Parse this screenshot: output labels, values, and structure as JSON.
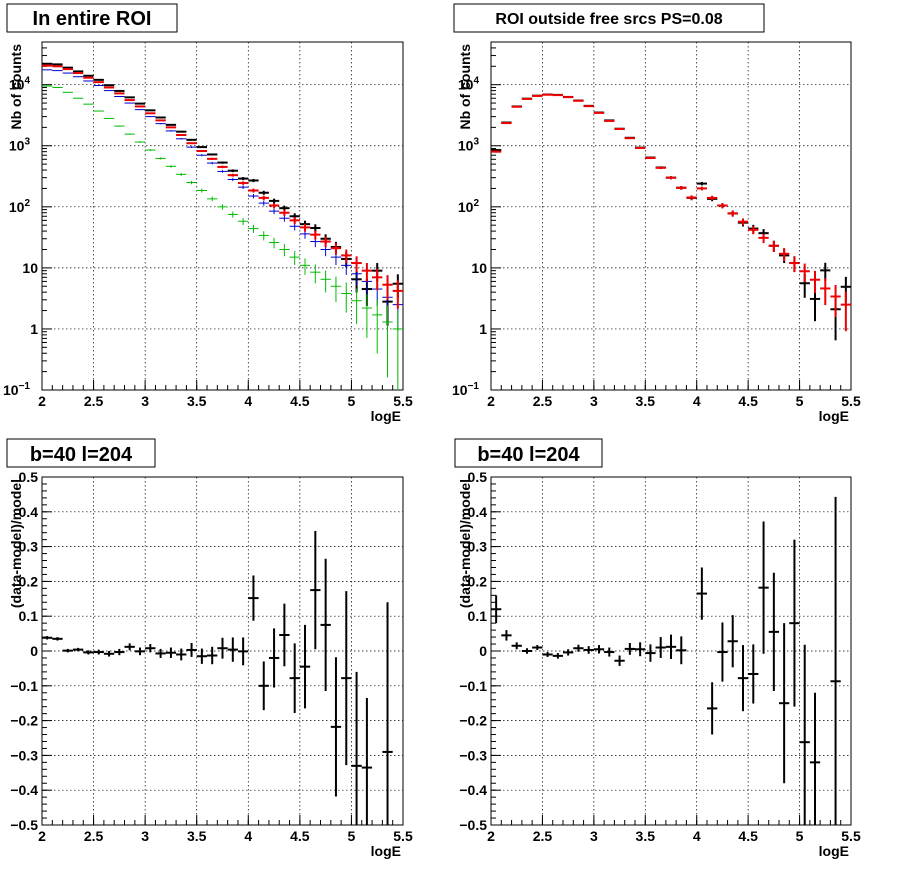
{
  "chart_data": [
    {
      "type": "scatter",
      "title": "In entire ROI",
      "xlabel": "logE",
      "ylabel": "Nb of counts",
      "xlim": [
        2,
        5.5
      ],
      "ylim": [
        0.1,
        50000
      ],
      "yscale": "log",
      "grid": true,
      "x_ticks": [
        "2",
        "2.5",
        "3",
        "3.5",
        "4",
        "4.5",
        "5",
        "5.5"
      ],
      "y_ticks": [
        {
          "v": 0.1,
          "base": "10",
          "exp": "−1"
        },
        {
          "v": 1,
          "label": "1"
        },
        {
          "v": 10,
          "label": "10"
        },
        {
          "v": 100,
          "base": "10",
          "exp": "2"
        },
        {
          "v": 1000,
          "base": "10",
          "exp": "3"
        },
        {
          "v": 10000,
          "base": "10",
          "exp": "4"
        }
      ],
      "series": [
        {
          "color": "#000000",
          "x": [
            2.05,
            2.15,
            2.25,
            2.35,
            2.45,
            2.55,
            2.65,
            2.75,
            2.85,
            2.95,
            3.05,
            3.15,
            3.25,
            3.35,
            3.45,
            3.55,
            3.65,
            3.75,
            3.85,
            3.95,
            4.05,
            4.15,
            4.25,
            4.35,
            4.45,
            4.55,
            4.65,
            4.75,
            4.85,
            4.95,
            5.05,
            5.15,
            5.25,
            5.35,
            5.45
          ],
          "y": [
            22000,
            21500,
            19000,
            16500,
            14000,
            12000,
            9800,
            7900,
            6200,
            4900,
            3800,
            2900,
            2200,
            1700,
            1250,
            950,
            720,
            530,
            390,
            290,
            270,
            170,
            125,
            95,
            70,
            52,
            45,
            30,
            22,
            14,
            6.5,
            4.5,
            9,
            2.8,
            5.5
          ]
        },
        {
          "color": "#0000cc",
          "x": [
            2.05,
            2.15,
            2.25,
            2.35,
            2.45,
            2.55,
            2.65,
            2.75,
            2.85,
            2.95,
            3.05,
            3.15,
            3.25,
            3.35,
            3.45,
            3.55,
            3.65,
            3.75,
            3.85,
            3.95,
            4.05,
            4.15,
            4.25,
            4.35,
            4.45,
            4.55,
            4.65,
            4.75,
            4.85,
            4.95,
            5.05,
            5.15,
            5.25,
            5.35,
            5.45
          ],
          "y": [
            17500,
            17000,
            15500,
            13500,
            11500,
            9700,
            8000,
            6400,
            5000,
            3900,
            3000,
            2300,
            1750,
            1300,
            950,
            700,
            520,
            380,
            280,
            210,
            150,
            115,
            85,
            65,
            48,
            36,
            27,
            20,
            15,
            11,
            8,
            6,
            4.5,
            3.3,
            2.5
          ]
        },
        {
          "color": "#00bb00",
          "x": [
            2.05,
            2.15,
            2.25,
            2.35,
            2.45,
            2.55,
            2.65,
            2.75,
            2.85,
            2.95,
            3.05,
            3.15,
            3.25,
            3.35,
            3.45,
            3.55,
            3.65,
            3.75,
            3.85,
            3.95,
            4.05,
            4.15,
            4.25,
            4.35,
            4.45,
            4.55,
            4.65,
            4.75,
            4.85,
            4.95,
            5.05,
            5.15,
            5.25,
            5.35,
            5.45
          ],
          "y": [
            9500,
            9000,
            7500,
            6000,
            4800,
            3700,
            2800,
            2100,
            1550,
            1150,
            850,
            620,
            460,
            340,
            250,
            185,
            135,
            100,
            75,
            58,
            44,
            34,
            26,
            20,
            15,
            11,
            8.5,
            6.5,
            5,
            3.8,
            2.9,
            2.2,
            1.7,
            1.3,
            1.0
          ]
        },
        {
          "color": "#ee0000",
          "x": [
            2.05,
            2.15,
            2.25,
            2.35,
            2.45,
            2.55,
            2.65,
            2.75,
            2.85,
            2.95,
            3.05,
            3.15,
            3.25,
            3.35,
            3.45,
            3.55,
            3.65,
            3.75,
            3.85,
            3.95,
            4.05,
            4.15,
            4.25,
            4.35,
            4.45,
            4.55,
            4.65,
            4.75,
            4.85,
            4.95,
            5.05,
            5.15,
            5.25,
            5.35,
            5.45
          ],
          "y": [
            20500,
            20000,
            18000,
            15500,
            13000,
            11000,
            9000,
            7200,
            5600,
            4400,
            3400,
            2600,
            2000,
            1500,
            1100,
            820,
            610,
            450,
            330,
            245,
            185,
            140,
            105,
            80,
            60,
            46,
            35,
            27,
            21,
            16,
            12,
            9,
            7,
            5.3,
            4.2
          ]
        }
      ]
    },
    {
      "type": "scatter",
      "title": "ROI outside free srcs PS=0.08",
      "xlabel": "logE",
      "ylabel": "Nb of counts",
      "xlim": [
        2,
        5.5
      ],
      "ylim": [
        0.1,
        50000
      ],
      "yscale": "log",
      "grid": true,
      "x_ticks": [
        "2",
        "2.5",
        "3",
        "3.5",
        "4",
        "4.5",
        "5",
        "5.5"
      ],
      "y_ticks": [
        {
          "v": 0.1,
          "base": "10",
          "exp": "−1"
        },
        {
          "v": 1,
          "label": "1"
        },
        {
          "v": 10,
          "label": "10"
        },
        {
          "v": 100,
          "base": "10",
          "exp": "2"
        },
        {
          "v": 1000,
          "base": "10",
          "exp": "3"
        },
        {
          "v": 10000,
          "base": "10",
          "exp": "4"
        }
      ],
      "series": [
        {
          "color": "#000000",
          "x": [
            2.05,
            2.15,
            2.25,
            2.35,
            2.45,
            2.55,
            2.65,
            2.75,
            2.85,
            2.95,
            3.05,
            3.15,
            3.25,
            3.35,
            3.45,
            3.55,
            3.65,
            3.75,
            3.85,
            3.95,
            4.05,
            4.15,
            4.25,
            4.35,
            4.45,
            4.55,
            4.65,
            4.75,
            4.85,
            4.95,
            5.05,
            5.15,
            5.25,
            5.35,
            5.45
          ],
          "y": [
            850,
            2400,
            4400,
            5900,
            6600,
            6900,
            6800,
            6300,
            5500,
            4500,
            3500,
            2600,
            1900,
            1350,
            930,
            640,
            440,
            300,
            205,
            140,
            240,
            135,
            105,
            78,
            55,
            44,
            37,
            23,
            16,
            12,
            5.6,
            3.1,
            9.1,
            2.1,
            4.9
          ]
        },
        {
          "color": "#ee0000",
          "x": [
            2.05,
            2.15,
            2.25,
            2.35,
            2.45,
            2.55,
            2.65,
            2.75,
            2.85,
            2.95,
            3.05,
            3.15,
            3.25,
            3.35,
            3.45,
            3.55,
            3.65,
            3.75,
            3.85,
            3.95,
            4.05,
            4.15,
            4.25,
            4.35,
            4.45,
            4.55,
            4.65,
            4.75,
            4.85,
            4.95,
            5.05,
            5.15,
            5.25,
            5.35,
            5.45
          ],
          "y": [
            800,
            2350,
            4350,
            5850,
            6550,
            6850,
            6750,
            6250,
            5450,
            4450,
            3450,
            2550,
            1880,
            1330,
            920,
            630,
            435,
            300,
            205,
            142,
            200,
            140,
            105,
            78,
            57,
            42,
            31,
            23,
            17,
            12,
            8.8,
            6.4,
            4.6,
            3.4,
            2.5
          ]
        }
      ]
    },
    {
      "type": "scatter",
      "title": "b=40 l=204",
      "xlabel": "logE",
      "ylabel": "(data-model)/model",
      "xlim": [
        2,
        5.5
      ],
      "ylim": [
        -0.5,
        0.5
      ],
      "grid": true,
      "x_ticks": [
        "2",
        "2.5",
        "3",
        "3.5",
        "4",
        "4.5",
        "5",
        "5.5"
      ],
      "y_ticks": [
        {
          "v": -0.5,
          "label": "−0.5"
        },
        {
          "v": -0.4,
          "label": "−0.4"
        },
        {
          "v": -0.3,
          "label": "−0.3"
        },
        {
          "v": -0.2,
          "label": "−0.2"
        },
        {
          "v": -0.1,
          "label": "−0.1"
        },
        {
          "v": 0,
          "label": "0"
        },
        {
          "v": 0.1,
          "label": "0.1"
        },
        {
          "v": 0.2,
          "label": "0.2"
        },
        {
          "v": 0.3,
          "label": "0.3"
        },
        {
          "v": 0.4,
          "label": "0.4"
        },
        {
          "v": 0.5,
          "label": "0.5"
        }
      ],
      "series": [
        {
          "color": "#000000",
          "x": [
            2.05,
            2.15,
            2.25,
            2.35,
            2.45,
            2.55,
            2.65,
            2.75,
            2.85,
            2.95,
            3.05,
            3.15,
            3.25,
            3.35,
            3.45,
            3.55,
            3.65,
            3.75,
            3.85,
            3.95,
            4.05,
            4.15,
            4.25,
            4.35,
            4.45,
            4.55,
            4.65,
            4.75,
            4.85,
            4.95,
            5.05,
            5.15,
            5.25,
            5.35,
            5.45
          ],
          "y": [
            0.038,
            0.035,
            0.001,
            0.004,
            -0.004,
            -0.003,
            -0.008,
            -0.003,
            0.012,
            -0.001,
            0.008,
            -0.007,
            -0.005,
            -0.01,
            0.003,
            -0.015,
            -0.013,
            0.008,
            0.004,
            -0.001,
            0.152,
            -0.1,
            -0.02,
            0.046,
            -0.078,
            -0.045,
            0.175,
            0.075,
            -0.218,
            -0.078,
            -0.33,
            -0.335,
            null,
            -0.29,
            null
          ],
          "err": [
            0.005,
            0.005,
            0.005,
            0.005,
            0.006,
            0.007,
            0.008,
            0.009,
            0.01,
            0.011,
            0.012,
            0.013,
            0.015,
            0.017,
            0.02,
            0.022,
            0.025,
            0.03,
            0.035,
            0.04,
            0.065,
            0.07,
            0.085,
            0.09,
            0.1,
            0.12,
            0.17,
            0.19,
            0.2,
            0.25,
            0.27,
            0.2,
            0,
            0.43,
            0
          ]
        }
      ]
    },
    {
      "type": "scatter",
      "title": "b=40 l=204",
      "xlabel": "logE",
      "ylabel": "(data-model)/model",
      "xlim": [
        2,
        5.5
      ],
      "ylim": [
        -0.5,
        0.5
      ],
      "grid": true,
      "x_ticks": [
        "2",
        "2.5",
        "3",
        "3.5",
        "4",
        "4.5",
        "5",
        "5.5"
      ],
      "y_ticks": [
        {
          "v": -0.5,
          "label": "−0.5"
        },
        {
          "v": -0.4,
          "label": "−0.4"
        },
        {
          "v": -0.3,
          "label": "−0.3"
        },
        {
          "v": -0.2,
          "label": "−0.2"
        },
        {
          "v": -0.1,
          "label": "−0.1"
        },
        {
          "v": 0,
          "label": "0"
        },
        {
          "v": 0.1,
          "label": "0.1"
        },
        {
          "v": 0.2,
          "label": "0.2"
        },
        {
          "v": 0.3,
          "label": "0.3"
        },
        {
          "v": 0.4,
          "label": "0.4"
        },
        {
          "v": 0.5,
          "label": "0.5"
        }
      ],
      "series": [
        {
          "color": "#000000",
          "x": [
            2.05,
            2.15,
            2.25,
            2.35,
            2.45,
            2.55,
            2.65,
            2.75,
            2.85,
            2.95,
            3.05,
            3.15,
            3.25,
            3.35,
            3.45,
            3.55,
            3.65,
            3.75,
            3.85,
            3.95,
            4.05,
            4.15,
            4.25,
            4.35,
            4.45,
            4.55,
            4.65,
            4.75,
            4.85,
            4.95,
            5.05,
            5.15,
            5.25,
            5.35,
            5.45
          ],
          "y": [
            0.12,
            0.045,
            0.015,
            0.0,
            0.01,
            -0.01,
            -0.014,
            -0.004,
            0.008,
            0.003,
            0.005,
            -0.003,
            -0.028,
            0.006,
            0.005,
            -0.006,
            0.01,
            0.012,
            0.002,
            null,
            0.165,
            -0.165,
            -0.003,
            0.028,
            -0.078,
            -0.066,
            0.182,
            0.055,
            -0.15,
            0.08,
            -0.262,
            -0.32,
            null,
            -0.087,
            null
          ],
          "err": [
            0.04,
            0.015,
            0.01,
            0.008,
            0.007,
            0.007,
            0.008,
            0.009,
            0.01,
            0.011,
            0.012,
            0.013,
            0.015,
            0.017,
            0.02,
            0.025,
            0.03,
            0.035,
            0.04,
            0,
            0.075,
            0.075,
            0.085,
            0.075,
            0.095,
            0.085,
            0.19,
            0.17,
            0.23,
            0.24,
            0.28,
            0.2,
            0,
            0.53,
            0
          ]
        }
      ]
    }
  ]
}
